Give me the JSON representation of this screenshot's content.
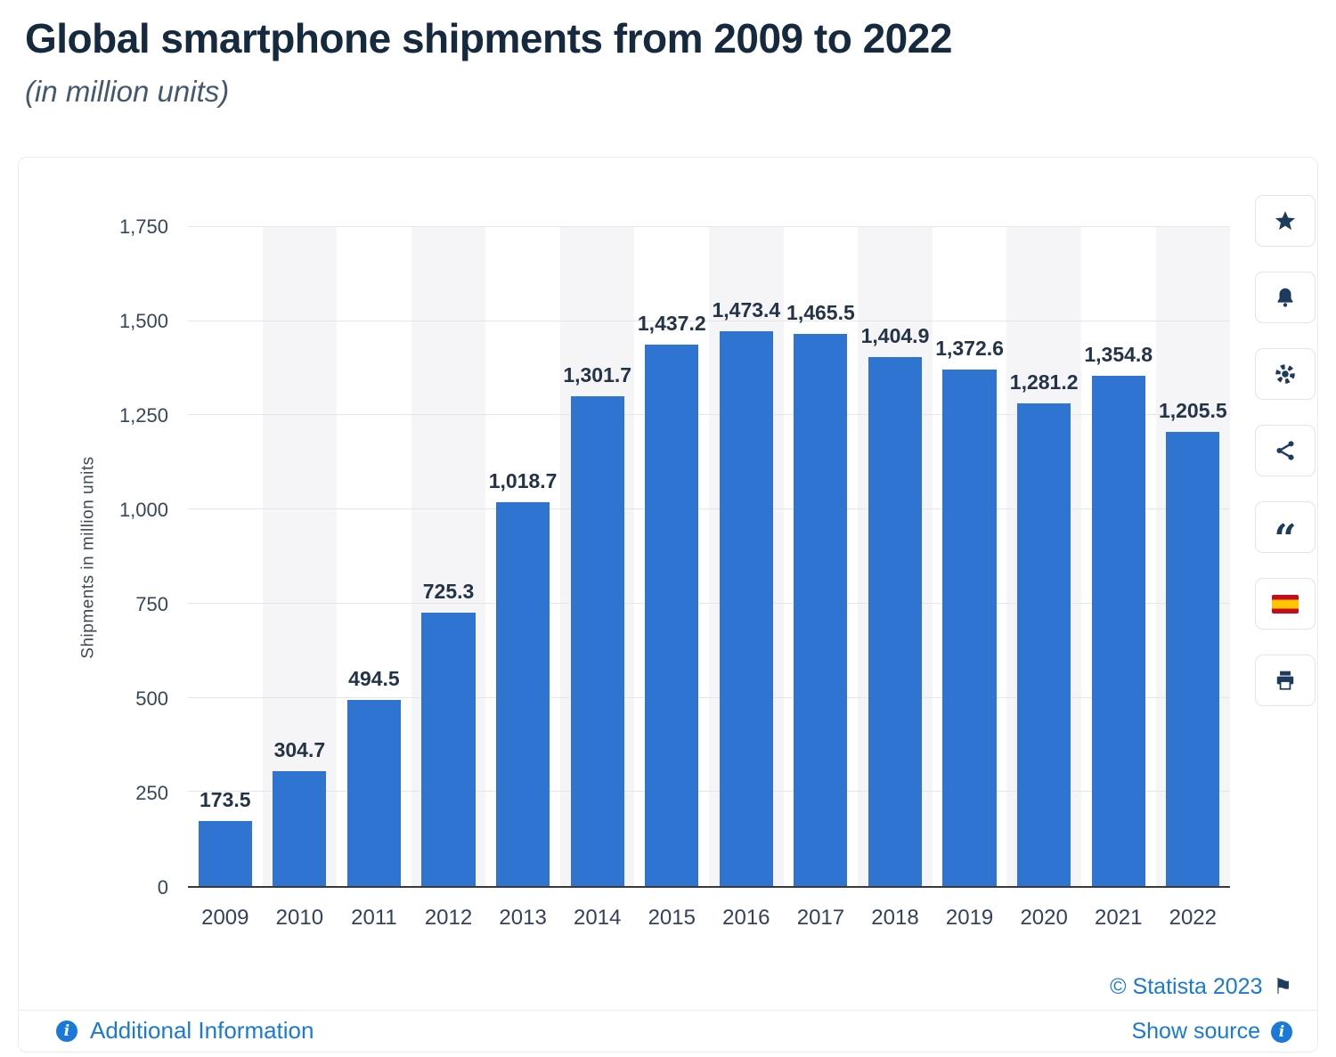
{
  "page": {
    "title": "Global smartphone shipments from 2009 to 2022",
    "subtitle": "(in million units)"
  },
  "chart_data": {
    "type": "bar",
    "title": "Global smartphone shipments from 2009 to 2022",
    "subtitle": "(in million units)",
    "categories": [
      "2009",
      "2010",
      "2011",
      "2012",
      "2013",
      "2014",
      "2015",
      "2016",
      "2017",
      "2018",
      "2019",
      "2020",
      "2021",
      "2022"
    ],
    "values": [
      173.5,
      304.7,
      494.5,
      725.3,
      1018.7,
      1301.7,
      1437.2,
      1473.4,
      1465.5,
      1404.9,
      1372.6,
      1281.2,
      1354.8,
      1205.5
    ],
    "value_labels": [
      "173.5",
      "304.7",
      "494.5",
      "725.3",
      "1,018.7",
      "1,301.7",
      "1,437.2",
      "1,473.4",
      "1,465.5",
      "1,404.9",
      "1,372.6",
      "1,281.2",
      "1,354.8",
      "1,205.5"
    ],
    "xlabel": "",
    "ylabel": "Shipments in million units",
    "ylim": [
      0,
      1750
    ],
    "yticks": [
      0,
      250,
      500,
      750,
      1000,
      1250,
      1500,
      1750
    ],
    "ytick_labels": [
      "0",
      "250",
      "500",
      "750",
      "1,000",
      "1,250",
      "1,500",
      "1,750"
    ],
    "grid": true,
    "legend": "none",
    "bar_color": "#2f74d0"
  },
  "toolbar": {
    "icons": [
      "star",
      "bell",
      "gear",
      "share",
      "quote",
      "spanish-flag",
      "print"
    ]
  },
  "footer": {
    "additional_information": "Additional Information",
    "copyright": "© Statista 2023",
    "show_source": "Show source"
  },
  "colors": {
    "bar": "#2f74d0",
    "link": "#1879d9",
    "icon_navy": "#1d3a5f",
    "band": "#f5f5f8",
    "gridline": "#e6e6ea"
  }
}
